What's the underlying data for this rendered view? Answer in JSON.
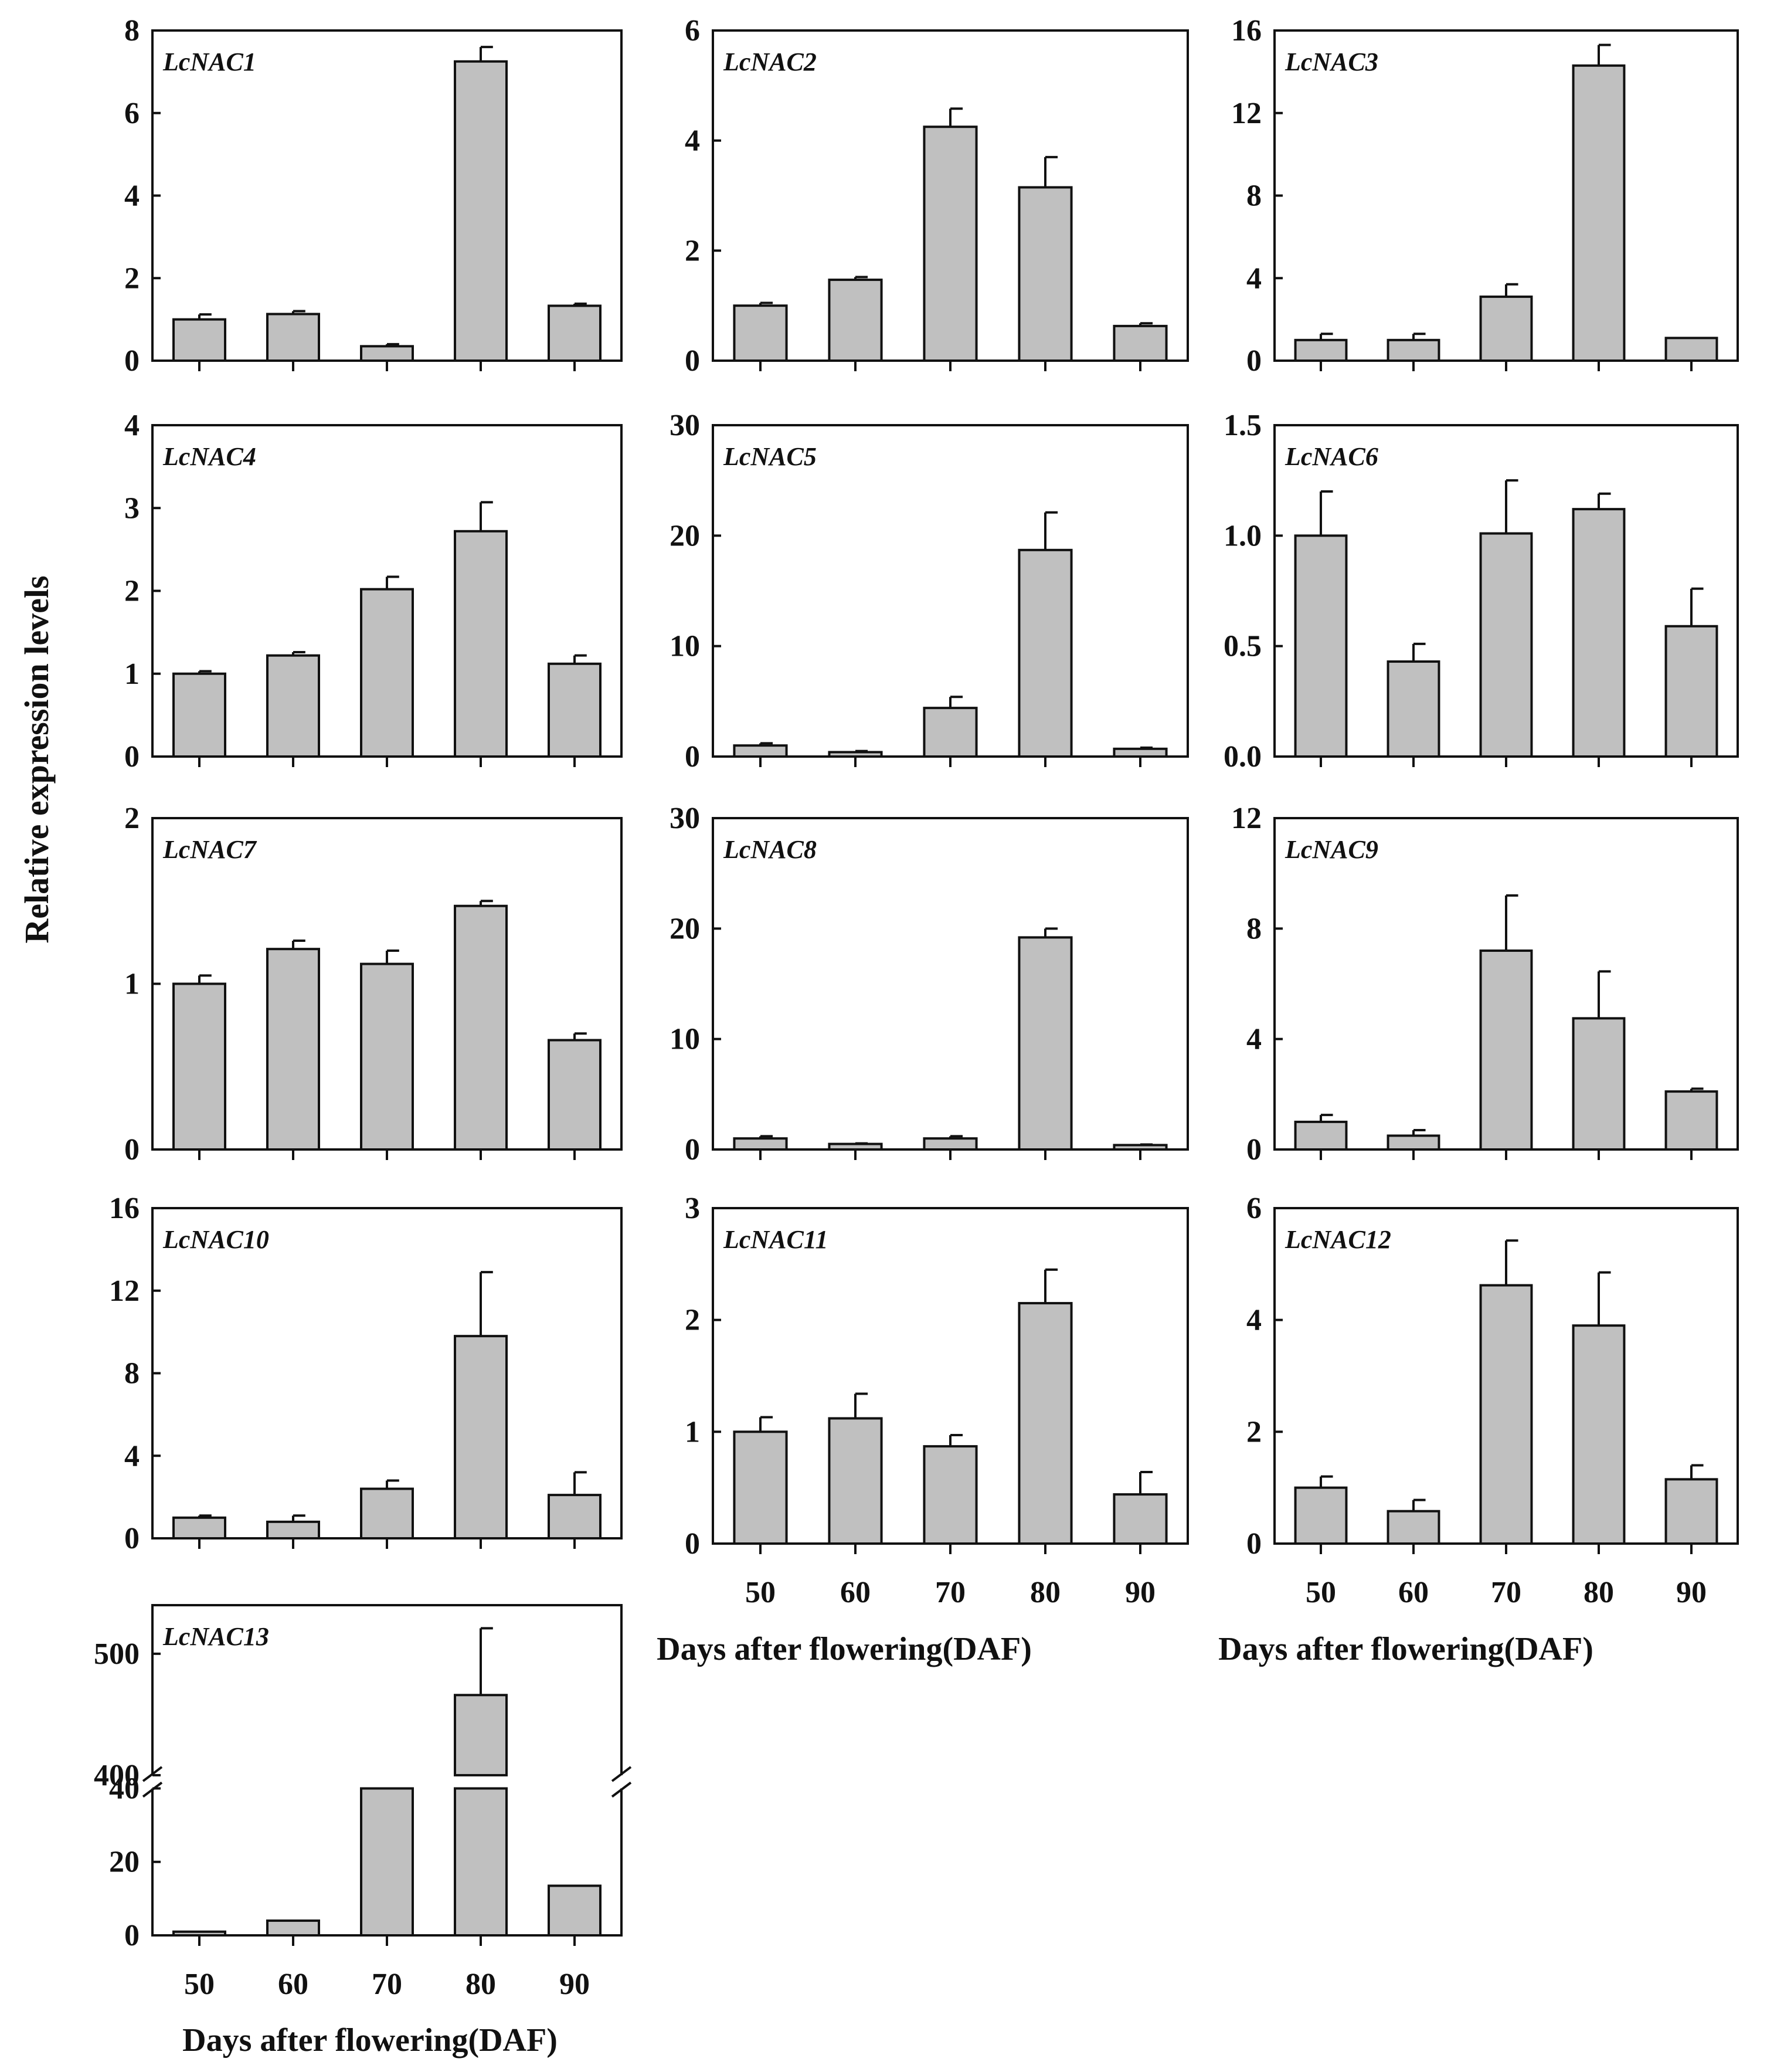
{
  "figure": {
    "ylabel": "Relative expression levels",
    "xlabel": "Days after flowering(DAF)"
  },
  "chart_data": [
    {
      "type": "bar",
      "title": "LcNAC1",
      "categories": [
        "50",
        "60",
        "70",
        "80",
        "90"
      ],
      "values": [
        1.0,
        1.13,
        0.35,
        7.25,
        1.33
      ],
      "errors": [
        0.12,
        0.07,
        0.05,
        0.35,
        0.05
      ],
      "ylim": [
        0,
        8
      ],
      "yticks": [
        "0",
        "2",
        "4",
        "6",
        "8"
      ],
      "xlabel": "",
      "ylabel": "Relative expression levels"
    },
    {
      "type": "bar",
      "title": "LcNAC2",
      "categories": [
        "50",
        "60",
        "70",
        "80",
        "90"
      ],
      "values": [
        1.0,
        1.47,
        4.25,
        3.15,
        0.63
      ],
      "errors": [
        0.05,
        0.05,
        0.33,
        0.55,
        0.05
      ],
      "ylim": [
        0,
        6
      ],
      "yticks": [
        "0",
        "2",
        "4",
        "6"
      ],
      "xlabel": "",
      "ylabel": "Relative expression levels"
    },
    {
      "type": "bar",
      "title": "LcNAC3",
      "categories": [
        "50",
        "60",
        "70",
        "80",
        "90"
      ],
      "values": [
        1.0,
        1.0,
        3.1,
        14.3,
        1.1
      ],
      "errors": [
        0.3,
        0.3,
        0.6,
        1.0,
        0.0
      ],
      "ylim": [
        0,
        16
      ],
      "yticks": [
        "0",
        "4",
        "8",
        "12",
        "16"
      ],
      "xlabel": "",
      "ylabel": "Relative expression levels"
    },
    {
      "type": "bar",
      "title": "LcNAC4",
      "categories": [
        "50",
        "60",
        "70",
        "80",
        "90"
      ],
      "values": [
        1.0,
        1.22,
        2.02,
        2.72,
        1.12
      ],
      "errors": [
        0.03,
        0.04,
        0.15,
        0.35,
        0.1
      ],
      "ylim": [
        0,
        4
      ],
      "yticks": [
        "0",
        "1",
        "2",
        "3",
        "4"
      ],
      "xlabel": "",
      "ylabel": "Relative expression levels"
    },
    {
      "type": "bar",
      "title": "LcNAC5",
      "categories": [
        "50",
        "60",
        "70",
        "80",
        "90"
      ],
      "values": [
        1.0,
        0.4,
        4.4,
        18.7,
        0.7
      ],
      "errors": [
        0.2,
        0.1,
        1.0,
        3.4,
        0.1
      ],
      "ylim": [
        0,
        30
      ],
      "yticks": [
        "0",
        "10",
        "20",
        "30"
      ],
      "xlabel": "",
      "ylabel": "Relative expression levels"
    },
    {
      "type": "bar",
      "title": "LcNAC6",
      "categories": [
        "50",
        "60",
        "70",
        "80",
        "90"
      ],
      "values": [
        1.0,
        0.43,
        1.01,
        1.12,
        0.59
      ],
      "errors": [
        0.2,
        0.08,
        0.24,
        0.07,
        0.17
      ],
      "ylim": [
        0,
        1.5
      ],
      "yticks": [
        "0.0",
        "0.5",
        "1.0",
        "1.5"
      ],
      "xlabel": "",
      "ylabel": "Relative expression levels"
    },
    {
      "type": "bar",
      "title": "LcNAC7",
      "categories": [
        "50",
        "60",
        "70",
        "80",
        "90"
      ],
      "values": [
        1.0,
        1.21,
        1.12,
        1.47,
        0.66
      ],
      "errors": [
        0.05,
        0.05,
        0.08,
        0.03,
        0.04
      ],
      "ylim": [
        0,
        2
      ],
      "yticks": [
        "0",
        "1",
        "2"
      ],
      "xlabel": "",
      "ylabel": "Relative expression levels"
    },
    {
      "type": "bar",
      "title": "LcNAC8",
      "categories": [
        "50",
        "60",
        "70",
        "80",
        "90"
      ],
      "values": [
        1.0,
        0.5,
        1.0,
        19.2,
        0.4
      ],
      "errors": [
        0.2,
        0.05,
        0.2,
        0.8,
        0.05
      ],
      "ylim": [
        0,
        30
      ],
      "yticks": [
        "0",
        "10",
        "20",
        "30"
      ],
      "xlabel": "",
      "ylabel": "Relative expression levels"
    },
    {
      "type": "bar",
      "title": "LcNAC9",
      "categories": [
        "50",
        "60",
        "70",
        "80",
        "90"
      ],
      "values": [
        1.0,
        0.5,
        7.2,
        4.75,
        2.1
      ],
      "errors": [
        0.25,
        0.2,
        2.0,
        1.7,
        0.1
      ],
      "ylim": [
        0,
        12
      ],
      "yticks": [
        "0",
        "4",
        "8",
        "12"
      ],
      "xlabel": "",
      "ylabel": "Relative expression levels"
    },
    {
      "type": "bar",
      "title": "LcNAC10",
      "categories": [
        "50",
        "60",
        "70",
        "80",
        "90"
      ],
      "values": [
        1.0,
        0.8,
        2.4,
        9.8,
        2.1
      ],
      "errors": [
        0.1,
        0.3,
        0.4,
        3.1,
        1.1
      ],
      "ylim": [
        0,
        16
      ],
      "yticks": [
        "0",
        "4",
        "8",
        "12",
        "16"
      ],
      "xlabel": "",
      "ylabel": "Relative expression levels"
    },
    {
      "type": "bar",
      "title": "LcNAC11",
      "categories": [
        "50",
        "60",
        "70",
        "80",
        "90"
      ],
      "values": [
        1.0,
        1.12,
        0.87,
        2.15,
        0.44
      ],
      "errors": [
        0.13,
        0.22,
        0.1,
        0.3,
        0.2
      ],
      "ylim": [
        0,
        3
      ],
      "yticks": [
        "0",
        "1",
        "2",
        "3"
      ],
      "xlabel": "Days after flowering(DAF)",
      "ylabel": "Relative expression levels"
    },
    {
      "type": "bar",
      "title": "LcNAC12",
      "categories": [
        "50",
        "60",
        "70",
        "80",
        "90"
      ],
      "values": [
        1.0,
        0.58,
        4.62,
        3.9,
        1.15
      ],
      "errors": [
        0.2,
        0.2,
        0.8,
        0.95,
        0.25
      ],
      "ylim": [
        0,
        6
      ],
      "yticks": [
        "0",
        "2",
        "4",
        "6"
      ],
      "xlabel": "Days after flowering(DAF)",
      "ylabel": "Relative expression levels"
    },
    {
      "type": "bar",
      "title": "LcNAC13",
      "categories": [
        "50",
        "60",
        "70",
        "80",
        "90"
      ],
      "values": [
        1.0,
        4.0,
        40.0,
        466.0,
        13.5
      ],
      "errors": [
        0.0,
        0.0,
        0.0,
        55.0,
        0.0
      ],
      "ylim": [
        0,
        540
      ],
      "broken_axis": {
        "lower": [
          0,
          40
        ],
        "upper": [
          400,
          540
        ]
      },
      "yticks": [
        "0",
        "20",
        "40",
        "400",
        "500"
      ],
      "xlabel": "Days after flowering(DAF)",
      "ylabel": "Relative expression levels"
    }
  ]
}
